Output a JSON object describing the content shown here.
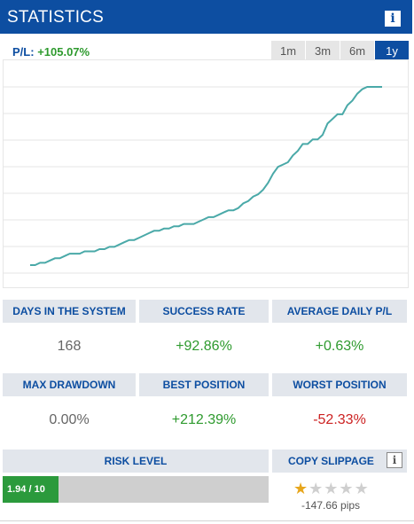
{
  "header": {
    "title": "STATISTICS",
    "info_icon": "i"
  },
  "pl": {
    "label": "P/L:",
    "value": "+105.07%"
  },
  "tabs": [
    {
      "label": "1m",
      "active": false
    },
    {
      "label": "3m",
      "active": false
    },
    {
      "label": "6m",
      "active": false
    },
    {
      "label": "1y",
      "active": true
    }
  ],
  "chart_data": {
    "type": "line",
    "grid": true,
    "line_color": "#4aa9a8",
    "series": [
      {
        "values": [
          0,
          0,
          1,
          1,
          2,
          3,
          3,
          4,
          5,
          5,
          5,
          6,
          6,
          6,
          7,
          7,
          8,
          8,
          9,
          10,
          11,
          11,
          12,
          13,
          14,
          15,
          15,
          16,
          16,
          17,
          17,
          18,
          18,
          18,
          19,
          20,
          21,
          21,
          22,
          23,
          24,
          24,
          25,
          27,
          28,
          30,
          31,
          33,
          36,
          40,
          43,
          44,
          45,
          48,
          50,
          53,
          53,
          55,
          55,
          57,
          62,
          64,
          66,
          66,
          70,
          72,
          75,
          77,
          78,
          78,
          78,
          78
        ]
      }
    ]
  },
  "stats": {
    "days_label": "DAYS IN THE SYSTEM",
    "days_value": "168",
    "success_label": "SUCCESS RATE",
    "success_value": "+92.86%",
    "avg_label": "AVERAGE DAILY P/L",
    "avg_value": "+0.63%",
    "maxdd_label": "MAX DRAWDOWN",
    "maxdd_value": "0.00%",
    "best_label": "BEST POSITION",
    "best_value": "+212.39%",
    "worst_label": "WORST POSITION",
    "worst_value": "-52.33%"
  },
  "risk": {
    "label": "RISK LEVEL",
    "value_text": "1.94 / 10",
    "fraction": 0.194
  },
  "slippage": {
    "label": "COPY SLIPPAGE",
    "info_icon": "i",
    "stars_filled": 1,
    "stars_total": 5,
    "pips": "-147.66 pips"
  },
  "colors": {
    "brand": "#0d4ea1",
    "positive": "#2e9a2e",
    "negative": "#cc2222",
    "star": "#e7a61c"
  }
}
